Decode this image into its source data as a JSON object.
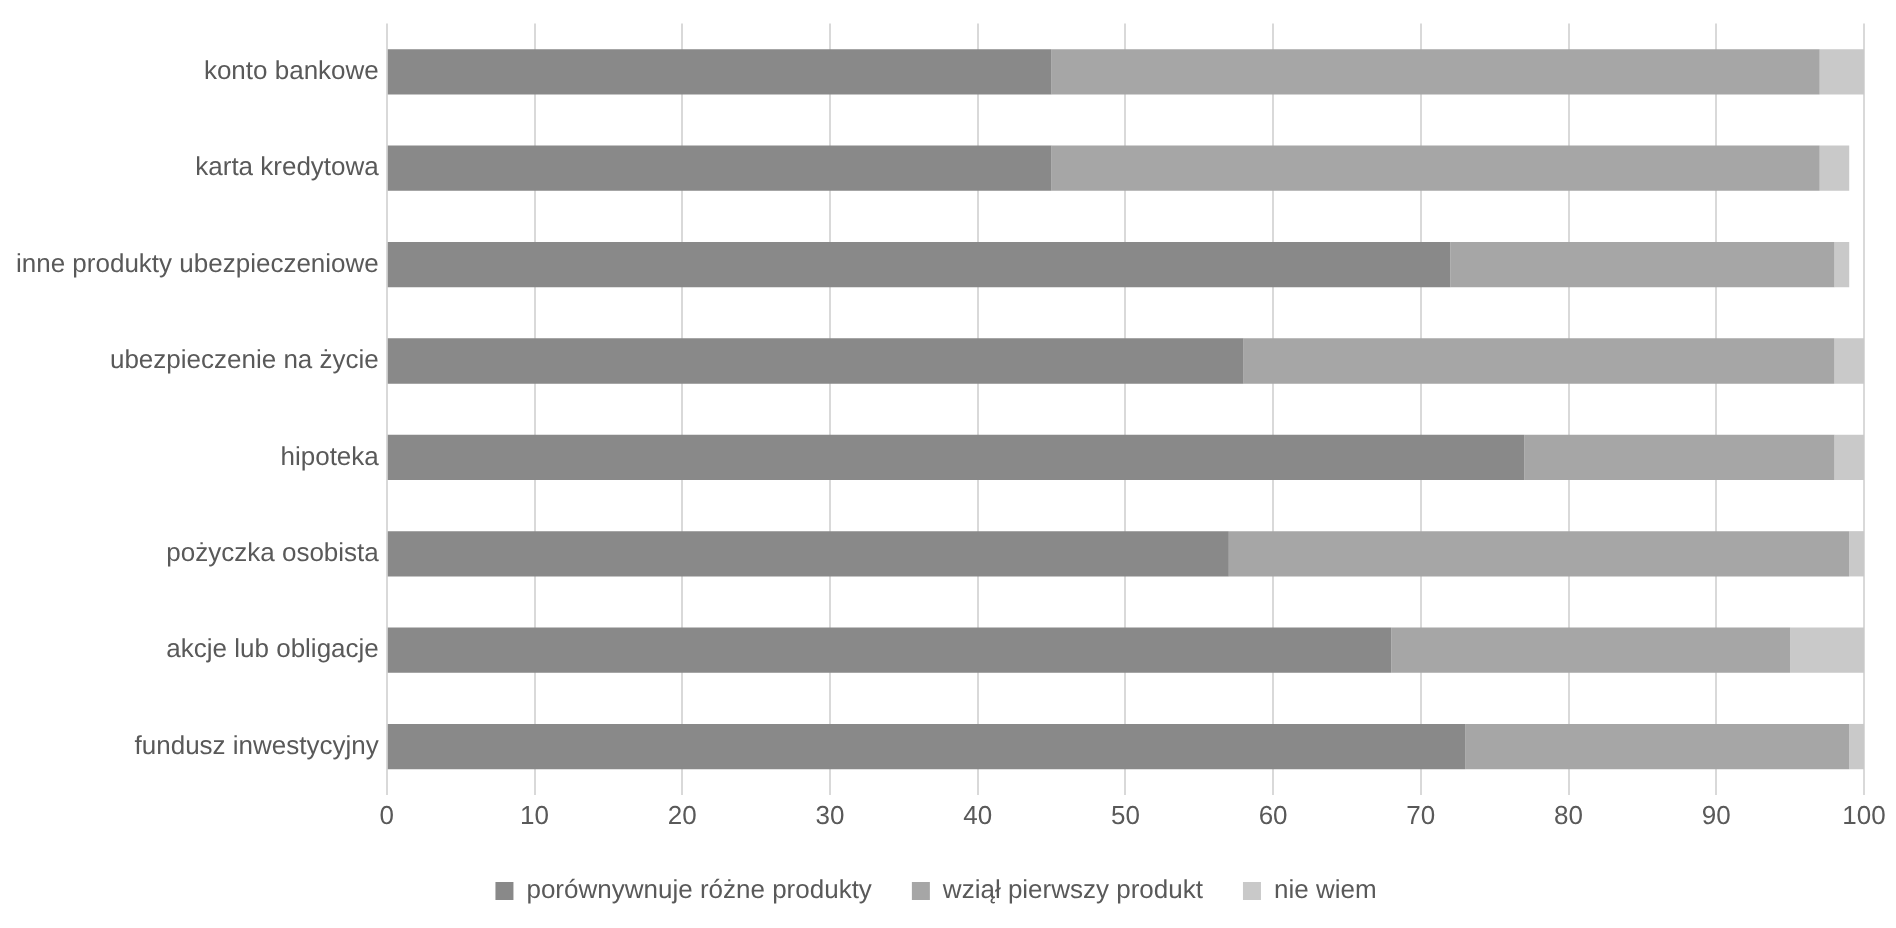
{
  "chart_data": {
    "type": "bar",
    "orientation": "horizontal",
    "stacked": true,
    "categories": [
      "konto bankowe",
      "karta kredytowa",
      "inne produkty ubezpieczeniowe",
      "ubezpieczenie na życie",
      "hipoteka",
      "pożyczka osobista",
      "akcje lub obligacje",
      "fundusz inwestycyjny"
    ],
    "series": [
      {
        "name": "porównywnuje różne produkty",
        "color": "#898989",
        "values": [
          45,
          45,
          72,
          58,
          77,
          57,
          68,
          73
        ]
      },
      {
        "name": "wziął pierwszy produkt",
        "color": "#a6a6a6",
        "values": [
          52,
          52,
          26,
          40,
          21,
          42,
          27,
          26
        ]
      },
      {
        "name": "nie wiem",
        "color": "#c9c9c9",
        "values": [
          3,
          2,
          1,
          2,
          2,
          1,
          5,
          1
        ]
      }
    ],
    "xlim": [
      0,
      100
    ],
    "xticks": [
      0,
      10,
      20,
      30,
      40,
      50,
      60,
      70,
      80,
      90,
      100
    ],
    "grid": "x",
    "legend": "bottom"
  }
}
